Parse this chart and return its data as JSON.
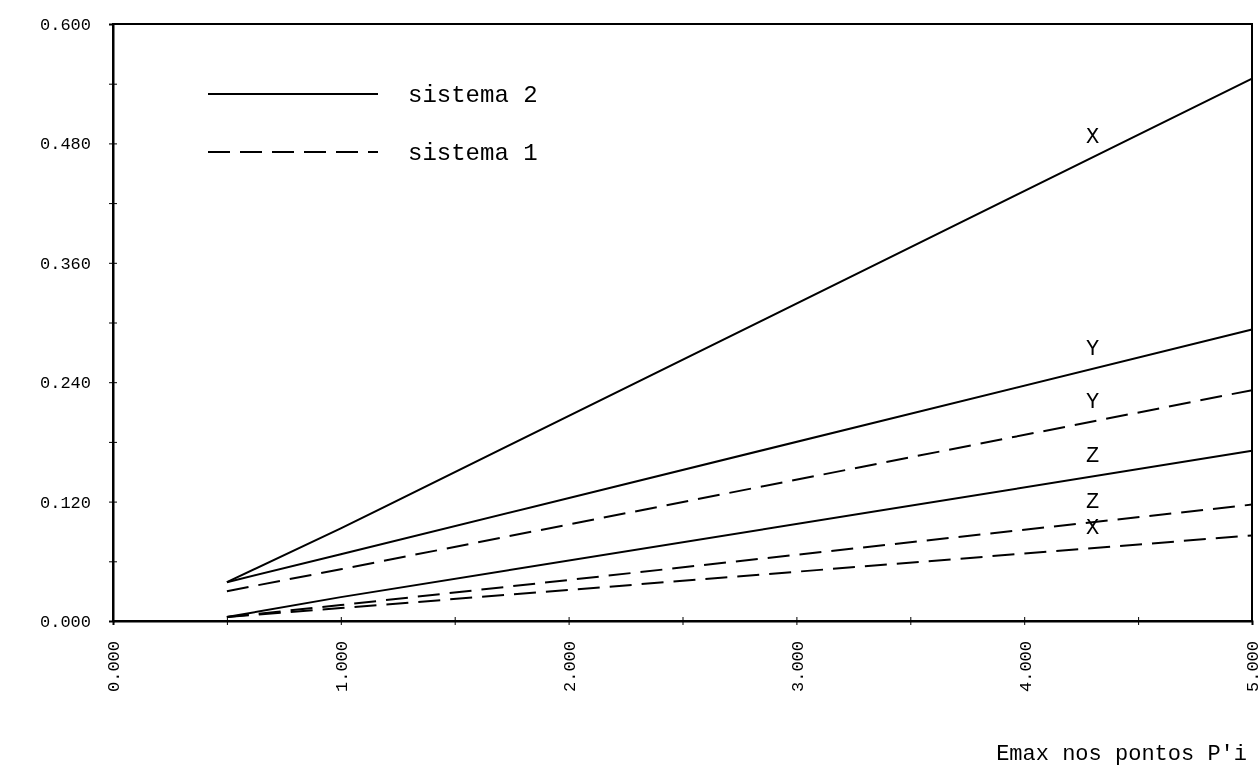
{
  "chart_data": {
    "type": "line",
    "xlabel": "Emax nos pontos P'i",
    "xlim": [
      0,
      5
    ],
    "ylim": [
      0,
      0.6
    ],
    "xticks": [
      {
        "value": 0,
        "label": "0.000"
      },
      {
        "value": 0.5,
        "label": null
      },
      {
        "value": 1,
        "label": "1.000"
      },
      {
        "value": 1.5,
        "label": null
      },
      {
        "value": 2,
        "label": "2.000"
      },
      {
        "value": 2.5,
        "label": null
      },
      {
        "value": 3,
        "label": "3.000"
      },
      {
        "value": 3.5,
        "label": null
      },
      {
        "value": 4,
        "label": "4.000"
      },
      {
        "value": 4.5,
        "label": null
      },
      {
        "value": 5,
        "label": "5.000"
      }
    ],
    "yticks": [
      {
        "value": 0,
        "label": "0.000"
      },
      {
        "value": 0.06,
        "label": null
      },
      {
        "value": 0.12,
        "label": "0.120"
      },
      {
        "value": 0.18,
        "label": null
      },
      {
        "value": 0.24,
        "label": "0.240"
      },
      {
        "value": 0.3,
        "label": null
      },
      {
        "value": 0.36,
        "label": "0.360"
      },
      {
        "value": 0.42,
        "label": null
      },
      {
        "value": 0.48,
        "label": "0.480"
      },
      {
        "value": 0.54,
        "label": null
      },
      {
        "value": 0.6,
        "label": "0.600"
      }
    ],
    "x": [
      0.5,
      1,
      5
    ],
    "series": [
      {
        "name": "X",
        "color": "#000000",
        "line_style": "solid",
        "values": [
          0.039,
          0.093,
          0.545
        ]
      },
      {
        "name": "Y",
        "color": "#000000",
        "line_style": "solid",
        "values": [
          0.039,
          0.067,
          0.293
        ]
      },
      {
        "name": "Z",
        "color": "#000000",
        "line_style": "solid",
        "values": [
          0.004,
          0.024,
          0.171
        ]
      },
      {
        "name": "Y",
        "color": "#000000",
        "line_style": "dashed",
        "values": [
          0.03,
          0.052,
          0.232
        ]
      },
      {
        "name": "Z",
        "color": "#000000",
        "line_style": "dashed",
        "values": [
          0.004,
          0.016,
          0.117
        ]
      },
      {
        "name": "X",
        "color": "#000000",
        "line_style": "dashed",
        "values": [
          0.004,
          0.013,
          0.086
        ]
      }
    ],
    "annotations": [
      "sistema 2",
      "sistema 1"
    ],
    "legend": "right",
    "grid": false,
    "marker": "none"
  }
}
